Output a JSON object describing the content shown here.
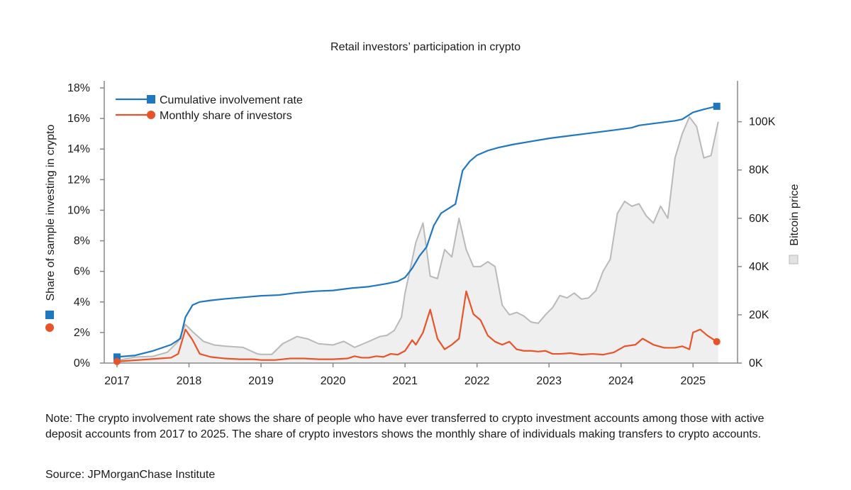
{
  "chart_data": {
    "type": "line",
    "title": "Retail investors’ participation in crypto",
    "ylabel": "Share of sample investing in crypto",
    "y2label": "Bitcoin price",
    "ylim": [
      0,
      18
    ],
    "y2lim": [
      0,
      114000
    ],
    "xlim": [
      2017,
      2025.5
    ],
    "x_ticks": [
      2017,
      2018,
      2019,
      2020,
      2021,
      2022,
      2023,
      2024,
      2025
    ],
    "x_tick_labels": [
      "2017",
      "2018",
      "2019",
      "2020",
      "2021",
      "2022",
      "2023",
      "2024",
      "2025"
    ],
    "y_ticks": [
      0,
      2,
      4,
      6,
      8,
      10,
      12,
      14,
      16,
      18
    ],
    "y_tick_labels": [
      "0%",
      "2%",
      "4%",
      "6%",
      "8%",
      "10%",
      "12%",
      "14%",
      "16%",
      "18%"
    ],
    "y2_ticks": [
      0,
      20000,
      40000,
      60000,
      80000,
      100000
    ],
    "y2_tick_labels": [
      "0K",
      "20K",
      "40K",
      "60K",
      "80K",
      "100K"
    ],
    "grid": false,
    "legend": "top-left",
    "series": [
      {
        "name": "Cumulative involvement rate",
        "color": "#1f77c0",
        "axis": "left",
        "marker": "square",
        "x": [
          2017.0,
          2017.25,
          2017.5,
          2017.75,
          2017.88,
          2017.95,
          2018.05,
          2018.15,
          2018.3,
          2018.5,
          2018.75,
          2019.0,
          2019.25,
          2019.5,
          2019.75,
          2020.0,
          2020.25,
          2020.5,
          2020.75,
          2020.9,
          2021.0,
          2021.1,
          2021.2,
          2021.3,
          2021.4,
          2021.5,
          2021.6,
          2021.7,
          2021.8,
          2021.9,
          2022.0,
          2022.15,
          2022.3,
          2022.5,
          2022.75,
          2023.0,
          2023.25,
          2023.5,
          2023.75,
          2024.0,
          2024.15,
          2024.25,
          2024.5,
          2024.75,
          2024.85,
          2025.0,
          2025.15,
          2025.33
        ],
        "y": [
          0.4,
          0.5,
          0.8,
          1.2,
          1.6,
          3.0,
          3.8,
          4.0,
          4.1,
          4.2,
          4.3,
          4.4,
          4.45,
          4.6,
          4.7,
          4.75,
          4.9,
          5.0,
          5.2,
          5.35,
          5.6,
          6.2,
          7.0,
          7.6,
          9.0,
          9.8,
          10.1,
          10.4,
          12.6,
          13.2,
          13.6,
          13.9,
          14.1,
          14.3,
          14.5,
          14.7,
          14.85,
          15.0,
          15.15,
          15.3,
          15.4,
          15.55,
          15.7,
          15.85,
          15.95,
          16.4,
          16.6,
          16.8
        ]
      },
      {
        "name": "Monthly share of investors",
        "color": "#e8542a",
        "axis": "left",
        "marker": "circle",
        "x": [
          2017.0,
          2017.15,
          2017.3,
          2017.45,
          2017.6,
          2017.75,
          2017.85,
          2017.95,
          2018.05,
          2018.15,
          2018.3,
          2018.5,
          2018.7,
          2018.9,
          2019.0,
          2019.2,
          2019.4,
          2019.6,
          2019.8,
          2020.0,
          2020.2,
          2020.3,
          2020.4,
          2020.5,
          2020.6,
          2020.7,
          2020.8,
          2020.9,
          2021.0,
          2021.1,
          2021.15,
          2021.25,
          2021.35,
          2021.45,
          2021.55,
          2021.65,
          2021.75,
          2021.85,
          2021.95,
          2022.05,
          2022.15,
          2022.25,
          2022.35,
          2022.45,
          2022.55,
          2022.65,
          2022.75,
          2022.85,
          2022.95,
          2023.05,
          2023.15,
          2023.3,
          2023.45,
          2023.6,
          2023.75,
          2023.9,
          2024.05,
          2024.2,
          2024.3,
          2024.45,
          2024.6,
          2024.75,
          2024.85,
          2024.95,
          2025.0,
          2025.1,
          2025.2,
          2025.33
        ],
        "y": [
          0.1,
          0.15,
          0.2,
          0.25,
          0.3,
          0.35,
          0.6,
          2.2,
          1.5,
          0.6,
          0.4,
          0.3,
          0.25,
          0.25,
          0.2,
          0.2,
          0.3,
          0.3,
          0.25,
          0.25,
          0.3,
          0.45,
          0.35,
          0.35,
          0.45,
          0.4,
          0.6,
          0.55,
          0.8,
          1.5,
          1.2,
          2.0,
          3.5,
          1.6,
          0.9,
          1.2,
          1.6,
          4.7,
          3.2,
          2.8,
          1.8,
          1.4,
          1.2,
          1.4,
          0.9,
          0.8,
          0.8,
          0.75,
          0.8,
          0.6,
          0.6,
          0.65,
          0.55,
          0.6,
          0.55,
          0.7,
          1.1,
          1.2,
          1.6,
          1.2,
          1.0,
          1.0,
          1.1,
          0.9,
          2.0,
          2.2,
          1.8,
          1.4
        ]
      },
      {
        "name": "Bitcoin price",
        "color": "#b9b9b9",
        "fill": "#efefef",
        "axis": "right",
        "marker": "square",
        "x": [
          2017.0,
          2017.25,
          2017.5,
          2017.7,
          2017.85,
          2017.95,
          2018.05,
          2018.2,
          2018.35,
          2018.5,
          2018.75,
          2018.95,
          2019.0,
          2019.15,
          2019.3,
          2019.5,
          2019.65,
          2019.8,
          2020.0,
          2020.15,
          2020.3,
          2020.5,
          2020.65,
          2020.75,
          2020.85,
          2020.95,
          2021.0,
          2021.08,
          2021.15,
          2021.25,
          2021.35,
          2021.45,
          2021.55,
          2021.65,
          2021.75,
          2021.85,
          2021.95,
          2022.05,
          2022.15,
          2022.25,
          2022.35,
          2022.45,
          2022.55,
          2022.65,
          2022.75,
          2022.85,
          2022.95,
          2023.05,
          2023.15,
          2023.25,
          2023.35,
          2023.45,
          2023.55,
          2023.65,
          2023.75,
          2023.85,
          2023.95,
          2024.05,
          2024.15,
          2024.25,
          2024.35,
          2024.45,
          2024.55,
          2024.65,
          2024.75,
          2024.85,
          2024.95,
          2025.05,
          2025.15,
          2025.25,
          2025.35
        ],
        "y": [
          1000,
          2500,
          2800,
          4500,
          9000,
          16000,
          13000,
          9000,
          7500,
          7000,
          6500,
          3800,
          3600,
          3600,
          8000,
          11000,
          10000,
          8000,
          7500,
          9000,
          6500,
          9000,
          11000,
          11500,
          13500,
          19000,
          29000,
          40000,
          50000,
          58000,
          36000,
          35000,
          47000,
          44000,
          60000,
          47000,
          40000,
          40000,
          42000,
          40000,
          24000,
          20000,
          21000,
          19500,
          17000,
          16500,
          20000,
          23000,
          28000,
          27000,
          29000,
          26500,
          27000,
          30000,
          38000,
          43000,
          62000,
          67000,
          65000,
          66000,
          61000,
          58000,
          65000,
          60000,
          85000,
          95000,
          102000,
          98000,
          85000,
          86000,
          100000
        ]
      }
    ]
  },
  "note": "Note: The crypto involvement rate shows the share of people who have ever transferred to crypto investment accounts among those with active deposit accounts from 2017 to 2025. The share of crypto investors shows the monthly share of individuals making transfers to crypto accounts.",
  "source": "Source: JPMorganChase Institute"
}
